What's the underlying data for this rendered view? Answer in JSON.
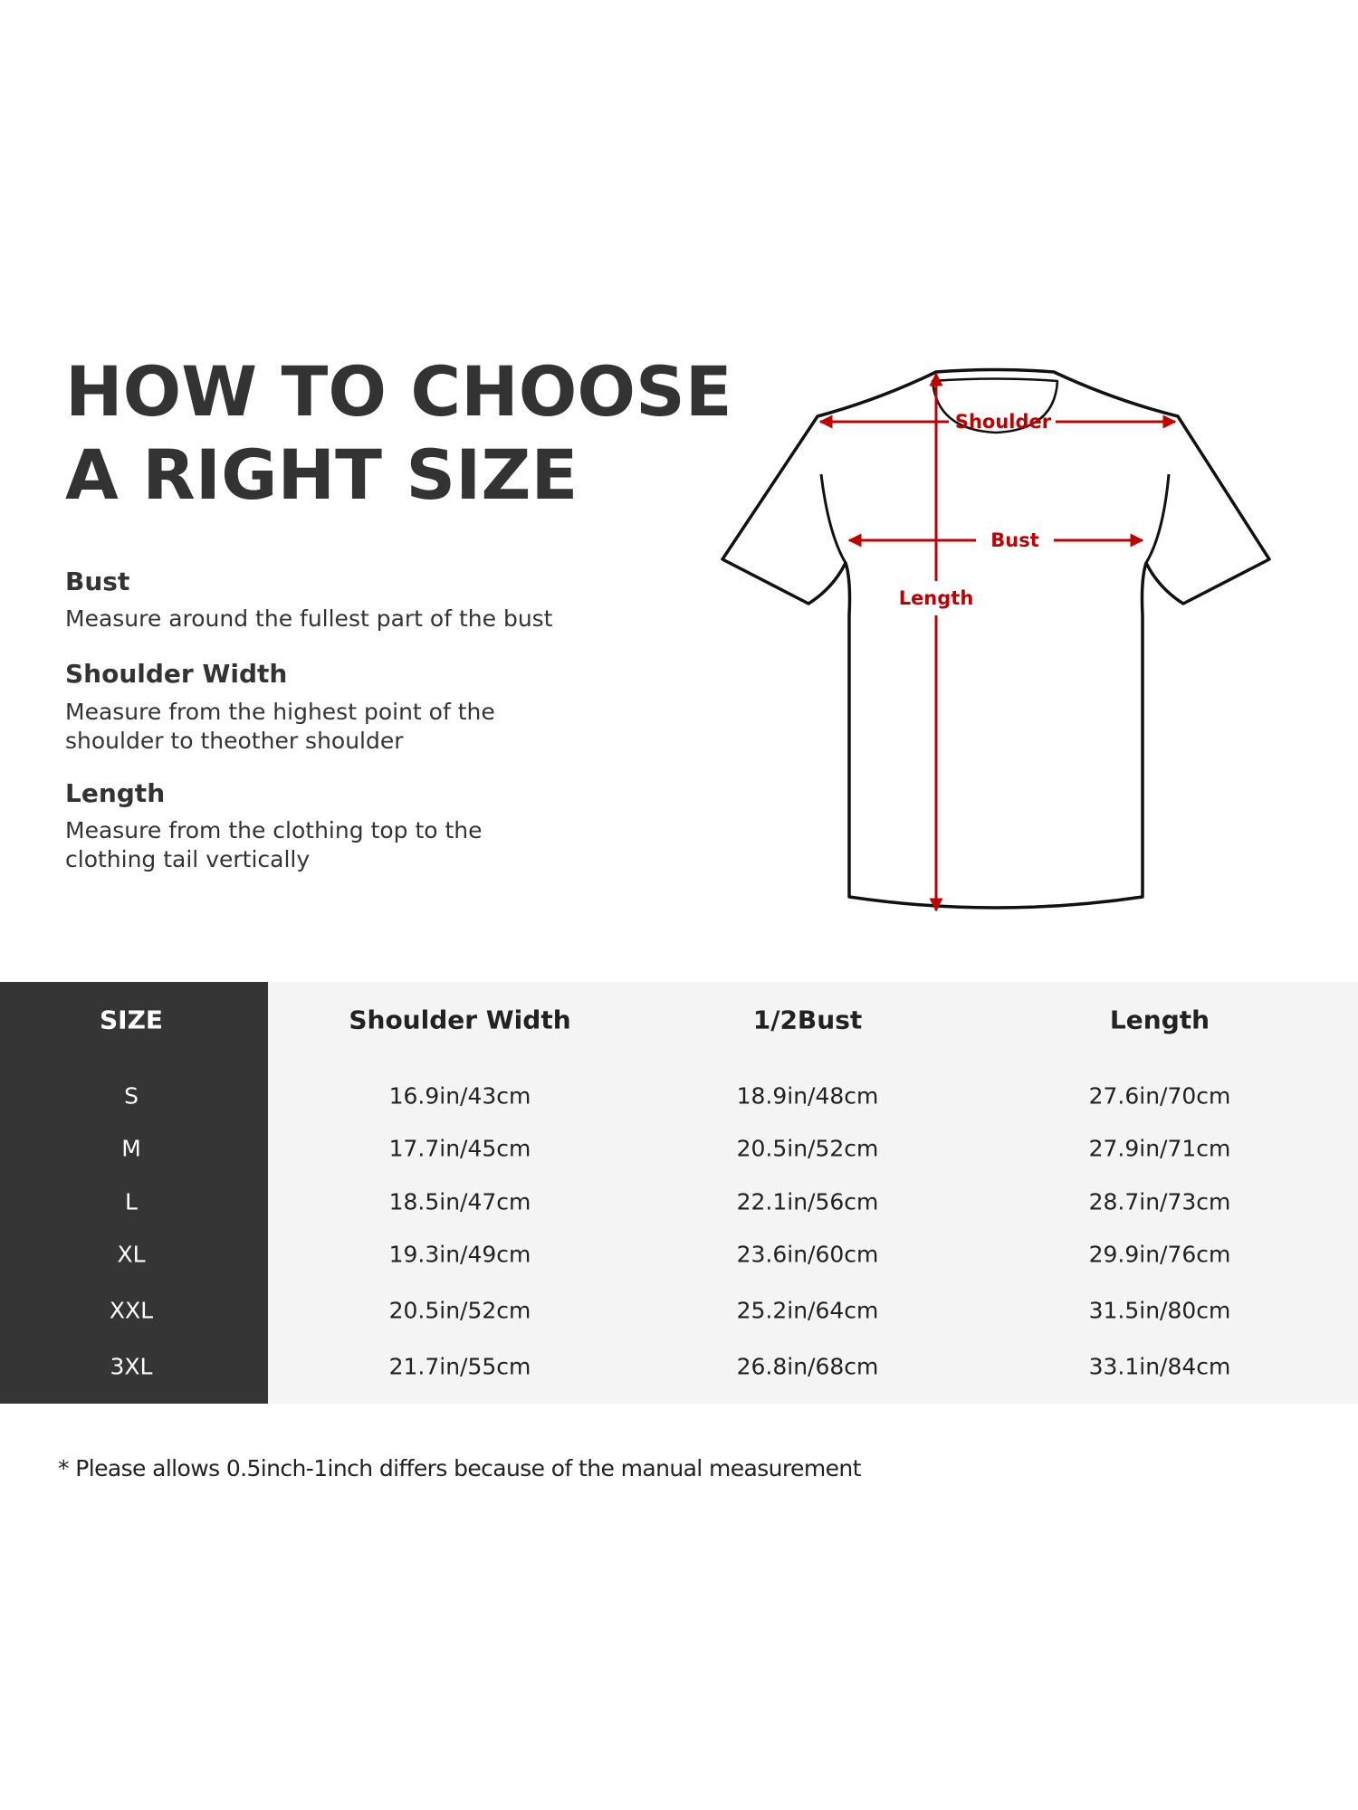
{
  "title": {
    "line1": "HOW TO CHOOSE",
    "line2": "A RIGHT SIZE"
  },
  "guide": [
    {
      "heading": "Bust",
      "lines": [
        "Measure around the fullest part of the bust"
      ]
    },
    {
      "heading": "Shoulder Width",
      "lines": [
        "Measure from the highest point of the",
        "shoulder to theother shoulder"
      ]
    },
    {
      "heading": "Length",
      "lines": [
        "Measure from the clothing top to the",
        "clothing tail vertically"
      ]
    }
  ],
  "diagram": {
    "shoulder_label": "Shoulder",
    "bust_label": "Bust",
    "length_label": "Length",
    "accent_color": "#c00000"
  },
  "table": {
    "headers": [
      "SIZE",
      "Shoulder Width",
      "1/2Bust",
      "Length"
    ],
    "rows": [
      [
        "S",
        "16.9in/43cm",
        "18.9in/48cm",
        "27.6in/70cm"
      ],
      [
        "M",
        "17.7in/45cm",
        "20.5in/52cm",
        "27.9in/71cm"
      ],
      [
        "L",
        "18.5in/47cm",
        "22.1in/56cm",
        "28.7in/73cm"
      ],
      [
        "XL",
        "19.3in/49cm",
        "23.6in/60cm",
        "29.9in/76cm"
      ],
      [
        "XXL",
        "20.5in/52cm",
        "25.2in/64cm",
        "31.5in/80cm"
      ],
      [
        "3XL",
        "21.7in/55cm",
        "26.8in/68cm",
        "33.1in/84cm"
      ]
    ]
  },
  "footnote": "* Please allows 0.5inch-1inch differs because of the  manual measurement"
}
